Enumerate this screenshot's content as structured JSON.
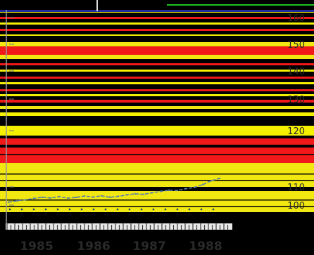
{
  "chart_data": {
    "type": "line",
    "title": "",
    "xlabel": "",
    "ylabel": "",
    "x_tick_labels": [
      "1985",
      "1986",
      "1987",
      "1988"
    ],
    "y_tick_labels": [
      "160",
      "150",
      "140",
      "130",
      "120",
      "110",
      "100"
    ],
    "ylim": [
      97,
      165
    ],
    "series": [
      {
        "values": [
          101.6,
          102.4,
          102.9,
          103.7,
          104.3,
          103.9,
          104.6,
          103.8,
          104.2,
          105.0,
          104.4,
          105.1,
          104.3,
          104.8,
          105.6,
          106.2,
          105.9,
          106.8,
          107.5,
          108.2,
          108.0,
          109.0,
          109.7,
          110.4,
          111.1,
          111.5
        ]
      }
    ],
    "colors": {
      "background": "#000000",
      "band_red": "#f01818",
      "band_yellow": "#f0e810",
      "band_bright_yellow": "#f4f000",
      "band_black": "#000000",
      "line": "#5a7fa8",
      "top_rule": "#1d2b9e",
      "top_green": "#1fc41f",
      "tick_text": "#2b2b2b"
    }
  }
}
